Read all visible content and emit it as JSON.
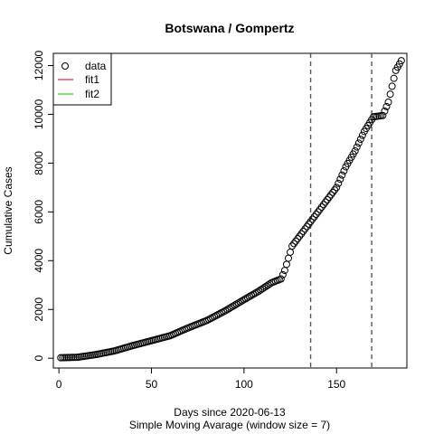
{
  "chart_data": {
    "type": "scatter",
    "title": "Botswana / Gompertz",
    "xlabel": "Days since 2020-06-13",
    "xlabel2": "Simple Moving Avarage (window size = 7)",
    "ylabel": "Cumulative Cases",
    "xlim": [
      -3,
      188
    ],
    "ylim": [
      -400,
      12500
    ],
    "x_ticks": [
      0,
      50,
      100,
      150
    ],
    "y_ticks": [
      0,
      2000,
      4000,
      6000,
      8000,
      10000,
      12000
    ],
    "vlines": [
      136,
      169
    ],
    "legend": {
      "placement": "top-left",
      "entries": [
        {
          "label": "data",
          "kind": "point",
          "color": "#000000"
        },
        {
          "label": "fit1",
          "kind": "line",
          "color": "#df536b"
        },
        {
          "label": "fit2",
          "kind": "line",
          "color": "#61d04f"
        }
      ]
    },
    "series": [
      {
        "name": "data",
        "keypoints": [
          [
            1,
            20
          ],
          [
            10,
            40
          ],
          [
            20,
            150
          ],
          [
            30,
            300
          ],
          [
            40,
            520
          ],
          [
            50,
            720
          ],
          [
            60,
            920
          ],
          [
            70,
            1250
          ],
          [
            80,
            1550
          ],
          [
            90,
            1950
          ],
          [
            100,
            2400
          ],
          [
            108,
            2750
          ],
          [
            115,
            3100
          ],
          [
            120,
            3250
          ],
          [
            122,
            3600
          ],
          [
            126,
            4600
          ],
          [
            130,
            5000
          ],
          [
            135,
            5500
          ],
          [
            140,
            6000
          ],
          [
            145,
            6500
          ],
          [
            150,
            7000
          ],
          [
            155,
            7850
          ],
          [
            160,
            8500
          ],
          [
            165,
            9300
          ],
          [
            170,
            9900
          ],
          [
            175,
            9950
          ],
          [
            178,
            10500
          ],
          [
            182,
            11800
          ],
          [
            185,
            12200
          ]
        ]
      }
    ]
  }
}
